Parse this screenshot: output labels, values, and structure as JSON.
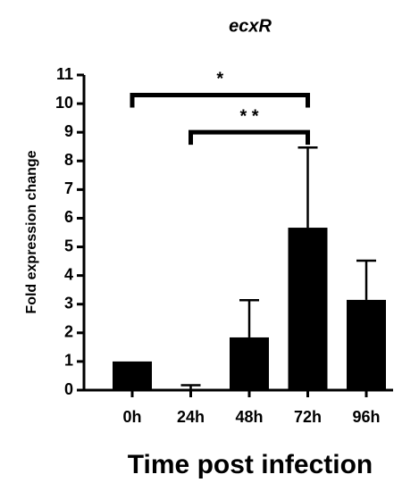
{
  "chart_data": {
    "type": "bar",
    "title": "ecxR",
    "x_label": "Time post infection",
    "y_label": "Fold expression change",
    "categories": [
      "0h",
      "24h",
      "48h",
      "72h",
      "96h"
    ],
    "values": [
      1,
      0.03,
      1.84,
      5.67,
      3.15
    ],
    "errors": [
      0,
      0.14,
      1.3,
      2.8,
      1.37
    ],
    "color": "#000000",
    "ylim": [
      0,
      11
    ],
    "yticks": [
      0,
      1,
      2,
      3,
      4,
      5,
      6,
      7,
      8,
      9,
      10,
      11
    ],
    "annotations": [
      {
        "label": "*",
        "from": "0h",
        "to": "72h",
        "y": 10.3
      },
      {
        "label": "* *",
        "from": "24h",
        "to": "72h",
        "y": 9.0
      }
    ]
  }
}
